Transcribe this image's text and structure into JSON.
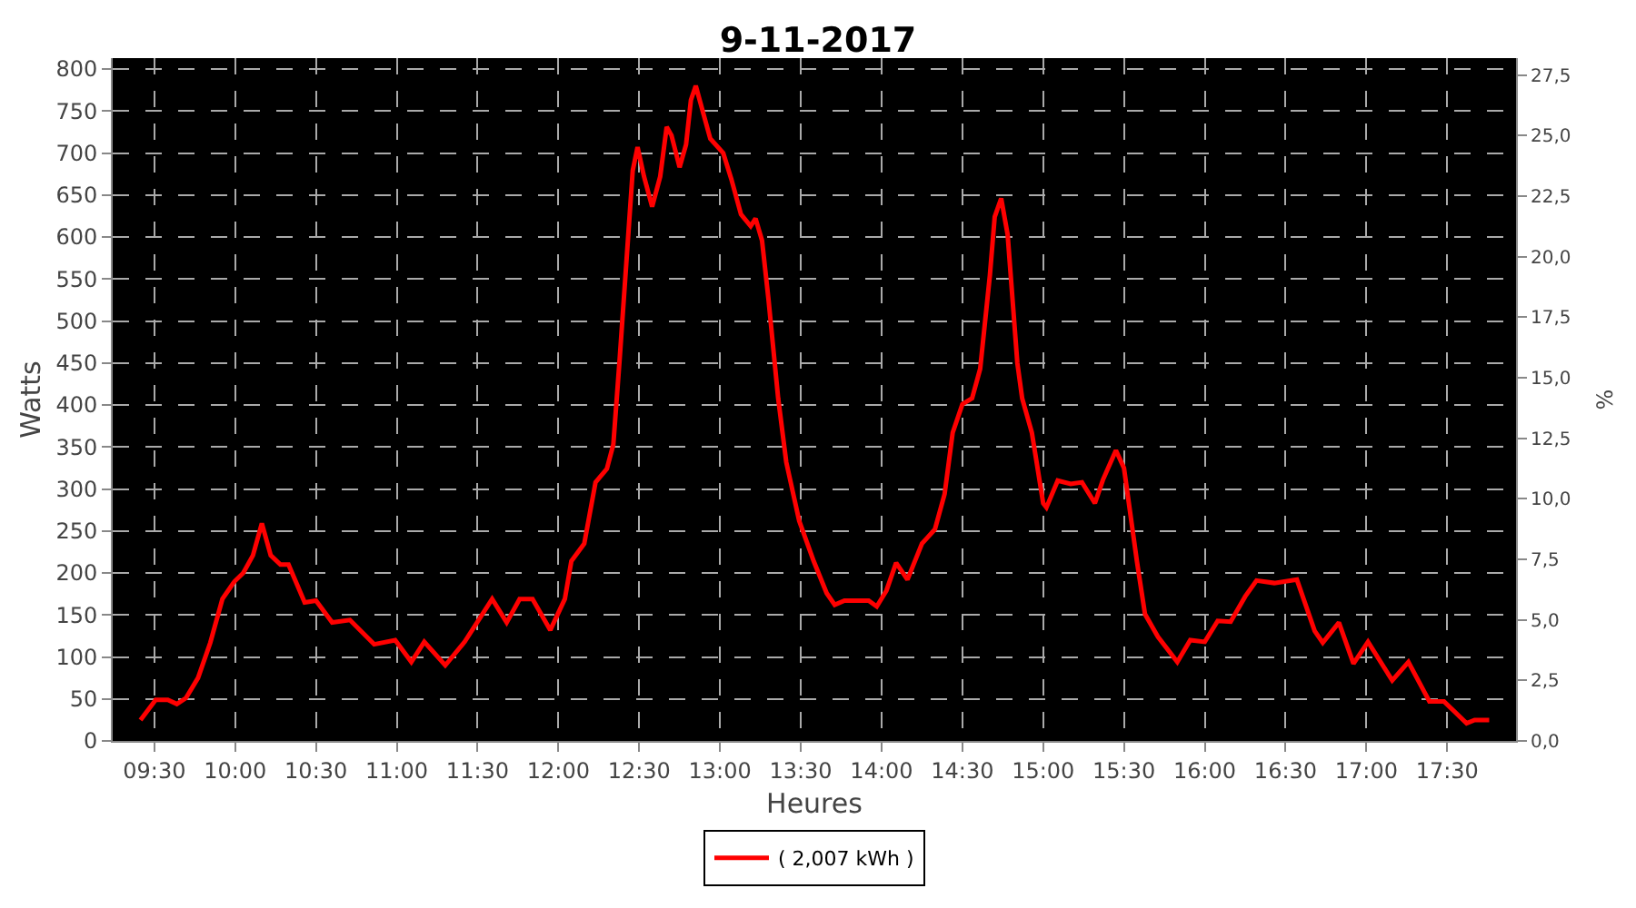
{
  "chart_data": {
    "type": "line",
    "title": "9-11-2017",
    "xlabel": "Heures",
    "ylabel": "Watts",
    "y2label": "%",
    "x": [
      9.414,
      9.508,
      9.583,
      9.639,
      9.695,
      9.77,
      9.846,
      9.921,
      9.996,
      10.05,
      10.11,
      10.165,
      10.22,
      10.28,
      10.33,
      10.43,
      10.5,
      10.6,
      10.71,
      10.86,
      10.99,
      11.09,
      11.17,
      11.3,
      11.42,
      11.52,
      11.59,
      11.68,
      11.76,
      11.84,
      11.95,
      12.04,
      12.08,
      12.16,
      12.23,
      12.3,
      12.34,
      12.38,
      12.42,
      12.46,
      12.49,
      12.53,
      12.58,
      12.63,
      12.67,
      12.7,
      12.75,
      12.79,
      12.82,
      12.85,
      12.91,
      12.94,
      13.02,
      13.07,
      13.13,
      13.19,
      13.22,
      13.26,
      13.3,
      13.36,
      13.41,
      13.49,
      13.58,
      13.66,
      13.71,
      13.77,
      13.92,
      13.97,
      14.03,
      14.09,
      14.16,
      14.25,
      14.33,
      14.39,
      14.44,
      14.5,
      14.56,
      14.61,
      14.67,
      14.7,
      14.74,
      14.78,
      14.84,
      14.87,
      14.93,
      15.0,
      15.02,
      15.09,
      15.17,
      15.24,
      15.32,
      15.37,
      15.45,
      15.5,
      15.58,
      15.63,
      15.71,
      15.83,
      15.91,
      16.0,
      16.08,
      16.16,
      16.25,
      16.32,
      16.43,
      16.57,
      16.68,
      16.73,
      16.83,
      16.92,
      17.01,
      17.16,
      17.26,
      17.39,
      17.48,
      17.62,
      17.67,
      17.76
    ],
    "series": [
      {
        "name": "( 2,007 kWh )",
        "color": "#ff0000",
        "values": [
          25,
          49,
          49,
          44,
          51,
          75,
          117,
          169,
          190,
          200,
          221,
          259,
          221,
          210,
          210,
          165,
          167,
          141,
          144,
          115,
          120,
          94,
          118,
          90,
          118,
          148,
          169,
          141,
          169,
          169,
          132,
          169,
          214,
          235,
          308,
          324,
          353,
          457,
          568,
          679,
          707,
          672,
          636,
          672,
          731,
          721,
          683,
          710,
          763,
          780,
          738,
          717,
          700,
          669,
          627,
          613,
          622,
          596,
          526,
          408,
          332,
          262,
          214,
          176,
          162,
          167,
          167,
          160,
          179,
          212,
          192,
          235,
          252,
          294,
          367,
          401,
          408,
          443,
          554,
          624,
          646,
          603,
          450,
          408,
          367,
          283,
          278,
          310,
          306,
          308,
          283,
          311,
          346,
          325,
          214,
          151,
          124,
          94,
          120,
          118,
          143,
          142,
          172,
          191,
          188,
          192,
          131,
          117,
          141,
          92,
          118,
          72,
          94,
          47,
          47,
          21,
          25,
          25
        ]
      }
    ],
    "xlim": [
      9.242,
      17.926
    ],
    "xticks": [
      {
        "value": 9.5,
        "label": "09:30"
      },
      {
        "value": 10,
        "label": "10:00"
      },
      {
        "value": 10.5,
        "label": "10:30"
      },
      {
        "value": 11,
        "label": "11:00"
      },
      {
        "value": 11.5,
        "label": "11:30"
      },
      {
        "value": 12,
        "label": "12:00"
      },
      {
        "value": 12.5,
        "label": "12:30"
      },
      {
        "value": 13,
        "label": "13:00"
      },
      {
        "value": 13.5,
        "label": "13:30"
      },
      {
        "value": 14,
        "label": "14:00"
      },
      {
        "value": 14.5,
        "label": "14:30"
      },
      {
        "value": 15,
        "label": "15:00"
      },
      {
        "value": 15.5,
        "label": "15:30"
      },
      {
        "value": 16,
        "label": "16:00"
      },
      {
        "value": 16.5,
        "label": "16:30"
      },
      {
        "value": 17,
        "label": "17:00"
      },
      {
        "value": 17.5,
        "label": "17:30"
      }
    ],
    "ylim": [
      0,
      813
    ],
    "yticks": [
      0,
      50,
      100,
      150,
      200,
      250,
      300,
      350,
      400,
      450,
      500,
      550,
      600,
      650,
      700,
      750,
      800
    ],
    "y2lim": [
      0,
      28.2
    ],
    "y2ticks": [
      {
        "value": 0,
        "label": "0,0"
      },
      {
        "value": 2.5,
        "label": "2,5"
      },
      {
        "value": 5,
        "label": "5,0"
      },
      {
        "value": 7.5,
        "label": "7,5"
      },
      {
        "value": 10,
        "label": "10,0"
      },
      {
        "value": 12.5,
        "label": "12,5"
      },
      {
        "value": 15,
        "label": "15,0"
      },
      {
        "value": 17.5,
        "label": "17,5"
      },
      {
        "value": 20,
        "label": "20,0"
      },
      {
        "value": 22.5,
        "label": "22,5"
      },
      {
        "value": 25,
        "label": "25,0"
      },
      {
        "value": 27.5,
        "label": "27,5"
      }
    ],
    "grid": true,
    "legend": "bottom",
    "marker": "none",
    "line_style": "solid"
  }
}
